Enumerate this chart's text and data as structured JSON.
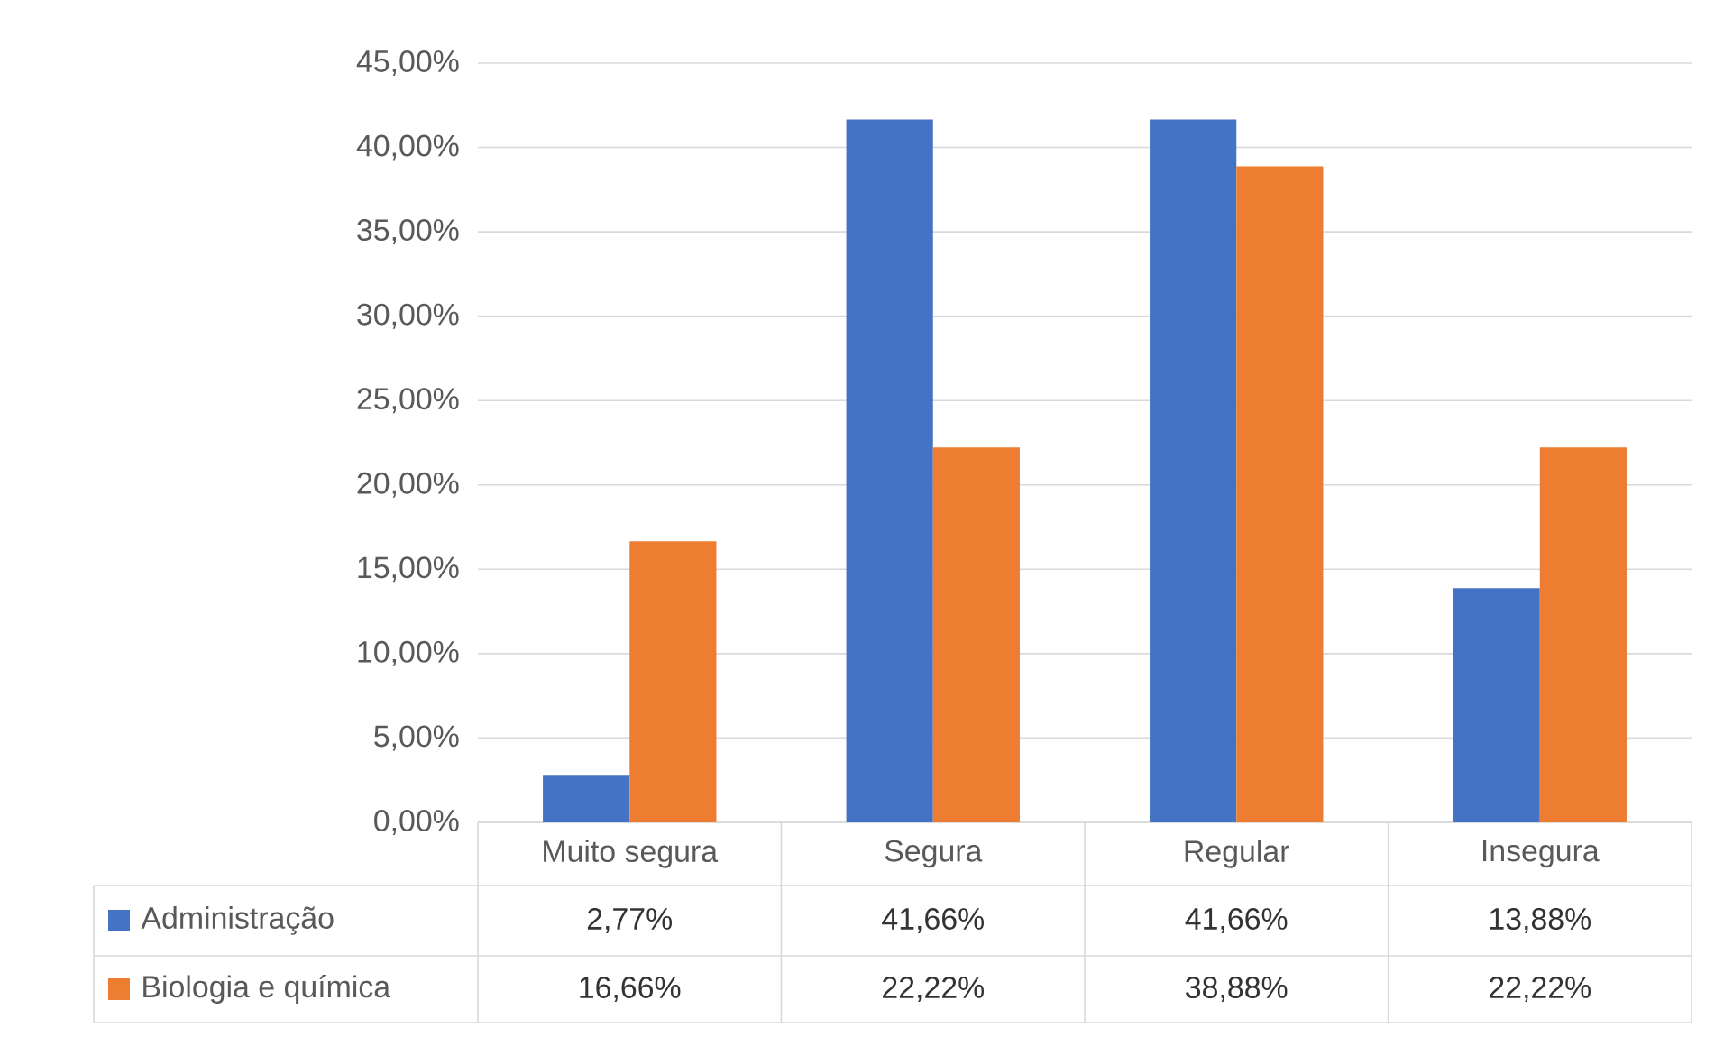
{
  "chart_data": {
    "type": "bar",
    "categories": [
      "Muito segura",
      "Segura",
      "Regular",
      "Insegura"
    ],
    "series": [
      {
        "name": "Administração",
        "color": "#4472c4",
        "values": [
          2.77,
          41.66,
          41.66,
          13.88
        ],
        "value_labels": [
          "2,77%",
          "41,66%",
          "41,66%",
          "13,88%"
        ]
      },
      {
        "name": "Biologia e química",
        "color": "#ed7d31",
        "values": [
          16.66,
          22.22,
          38.88,
          22.22
        ],
        "value_labels": [
          "16,66%",
          "22,22%",
          "38,88%",
          "22,22%"
        ]
      }
    ],
    "ylim": [
      0,
      45
    ],
    "yticks": [
      {
        "value": 0,
        "label": "0,00%"
      },
      {
        "value": 5,
        "label": "5,00%"
      },
      {
        "value": 10,
        "label": "10,00%"
      },
      {
        "value": 15,
        "label": "15,00%"
      },
      {
        "value": 20,
        "label": "20,00%"
      },
      {
        "value": 25,
        "label": "25,00%"
      },
      {
        "value": 30,
        "label": "30,00%"
      },
      {
        "value": 35,
        "label": "35,00%"
      },
      {
        "value": 40,
        "label": "40,00%"
      },
      {
        "value": 45,
        "label": "45,00%"
      }
    ],
    "grid": "y",
    "legend": "bottom"
  }
}
